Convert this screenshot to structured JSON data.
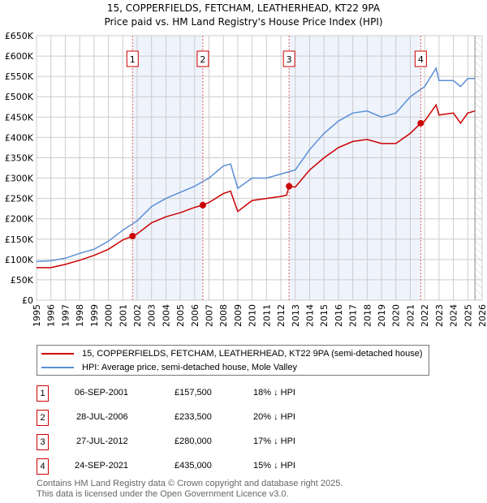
{
  "title": "15, COPPERFIELDS, FETCHAM, LEATHERHEAD, KT22 9PA",
  "subtitle": "Price paid vs. HM Land Registry's House Price Index (HPI)",
  "colors": {
    "property": "#cc0000",
    "hpi": "#5b8fd6",
    "shade": "#eef3fc",
    "grid": "#cccccc"
  },
  "chart_data": {
    "type": "line",
    "title": "Price paid vs. HM Land Registry's House Price Index (HPI)",
    "xlim": [
      1995,
      2026
    ],
    "ylim": [
      0,
      650000
    ],
    "x_ticks": [
      "1995",
      "1996",
      "1997",
      "1998",
      "1999",
      "2000",
      "2001",
      "2002",
      "2003",
      "2004",
      "2005",
      "2006",
      "2007",
      "2008",
      "2009",
      "2010",
      "2011",
      "2012",
      "2013",
      "2014",
      "2015",
      "2016",
      "2017",
      "2018",
      "2019",
      "2020",
      "2021",
      "2022",
      "2023",
      "2024",
      "2025",
      "2026"
    ],
    "y_ticks": [
      "£0",
      "£50K",
      "£100K",
      "£150K",
      "£200K",
      "£250K",
      "£300K",
      "£350K",
      "£400K",
      "£450K",
      "£500K",
      "£550K",
      "£600K",
      "£650K"
    ],
    "grid": true,
    "series": [
      {
        "name": "15, COPPERFIELDS, FETCHAM, LEATHERHEAD, KT22 9PA (semi-detached house)",
        "color": "#cc0000",
        "x": [
          1995,
          1996,
          1997,
          1998,
          1999,
          2000,
          2001,
          2001.68,
          2002,
          2003,
          2004,
          2005,
          2006,
          2006.57,
          2007,
          2008,
          2008.5,
          2009,
          2010,
          2011,
          2012,
          2012.4,
          2012.57,
          2013,
          2014,
          2015,
          2016,
          2017,
          2018,
          2019,
          2020,
          2021,
          2021.73,
          2022,
          2022.8,
          2023,
          2024,
          2024.5,
          2025,
          2025.5
        ],
        "y": [
          80000,
          80000,
          88000,
          98000,
          110000,
          125000,
          148000,
          157500,
          163000,
          190000,
          205000,
          215000,
          228000,
          233500,
          240000,
          262000,
          268000,
          218000,
          245000,
          250000,
          255000,
          258000,
          280000,
          278000,
          320000,
          350000,
          375000,
          390000,
          395000,
          385000,
          385000,
          410000,
          435000,
          440000,
          480000,
          455000,
          460000,
          435000,
          460000,
          465000
        ]
      },
      {
        "name": "HPI: Average price, semi-detached house, Mole Valley",
        "color": "#5b8fd6",
        "x": [
          1995,
          1996,
          1997,
          1998,
          1999,
          2000,
          2001,
          2002,
          2003,
          2004,
          2005,
          2006,
          2007,
          2008,
          2008.5,
          2009,
          2010,
          2011,
          2012,
          2013,
          2014,
          2015,
          2016,
          2017,
          2018,
          2019,
          2020,
          2021,
          2022,
          2022.8,
          2023,
          2024,
          2024.5,
          2025,
          2025.5
        ],
        "y": [
          95000,
          97000,
          103000,
          115000,
          125000,
          145000,
          172000,
          195000,
          230000,
          250000,
          265000,
          280000,
          300000,
          330000,
          335000,
          275000,
          300000,
          300000,
          310000,
          320000,
          370000,
          410000,
          440000,
          460000,
          465000,
          450000,
          460000,
          500000,
          525000,
          570000,
          540000,
          540000,
          525000,
          545000,
          545000
        ]
      }
    ],
    "sales": [
      {
        "label": "1",
        "x": 2001.68,
        "y": 157500
      },
      {
        "label": "2",
        "x": 2006.57,
        "y": 233500
      },
      {
        "label": "3",
        "x": 2012.57,
        "y": 280000
      },
      {
        "label": "4",
        "x": 2021.73,
        "y": 435000
      }
    ],
    "shaded_ranges": [
      [
        2001.68,
        2006.57
      ],
      [
        2012.57,
        2021.73
      ]
    ],
    "hatched_from": 2025.5
  },
  "legend": {
    "property": "15, COPPERFIELDS, FETCHAM, LEATHERHEAD, KT22 9PA (semi-detached house)",
    "hpi": "HPI: Average price, semi-detached house, Mole Valley"
  },
  "transactions": [
    {
      "num": "1",
      "date": "06-SEP-2001",
      "price": "£157,500",
      "hpi": "18% ↓ HPI"
    },
    {
      "num": "2",
      "date": "28-JUL-2006",
      "price": "£233,500",
      "hpi": "20% ↓ HPI"
    },
    {
      "num": "3",
      "date": "27-JUL-2012",
      "price": "£280,000",
      "hpi": "17% ↓ HPI"
    },
    {
      "num": "4",
      "date": "24-SEP-2021",
      "price": "£435,000",
      "hpi": "15% ↓ HPI"
    }
  ],
  "footer": {
    "line1": "Contains HM Land Registry data © Crown copyright and database right 2025.",
    "line2": "This data is licensed under the Open Government Licence v3.0."
  }
}
